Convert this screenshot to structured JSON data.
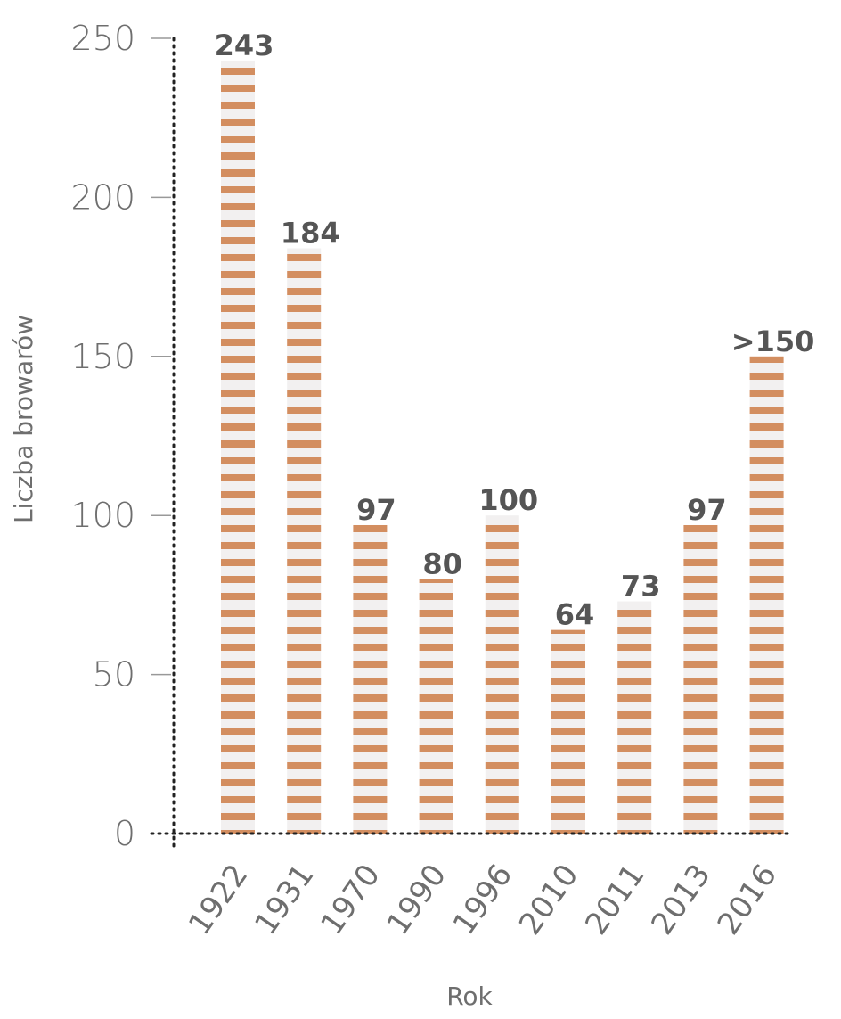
{
  "chart_data": {
    "type": "bar",
    "categories": [
      "1922",
      "1931",
      "1970",
      "1990",
      "1996",
      "2010",
      "2011",
      "2013",
      "2016"
    ],
    "values": [
      243,
      184,
      97,
      80,
      100,
      64,
      73,
      97,
      150
    ],
    "value_labels": [
      "243",
      "184",
      "97",
      "80",
      "100",
      "64",
      "73",
      "97",
      ">150"
    ],
    "xlabel": "Rok",
    "ylabel": "Liczba browarów",
    "ylim": [
      0,
      250
    ],
    "yticks": [
      0,
      50,
      100,
      150,
      200,
      250
    ],
    "grid": false,
    "colors": {
      "bar_stripe": "#d38e60",
      "bar_background": "#f2f0f0",
      "axis": "#222222",
      "tick": "#999999"
    }
  }
}
